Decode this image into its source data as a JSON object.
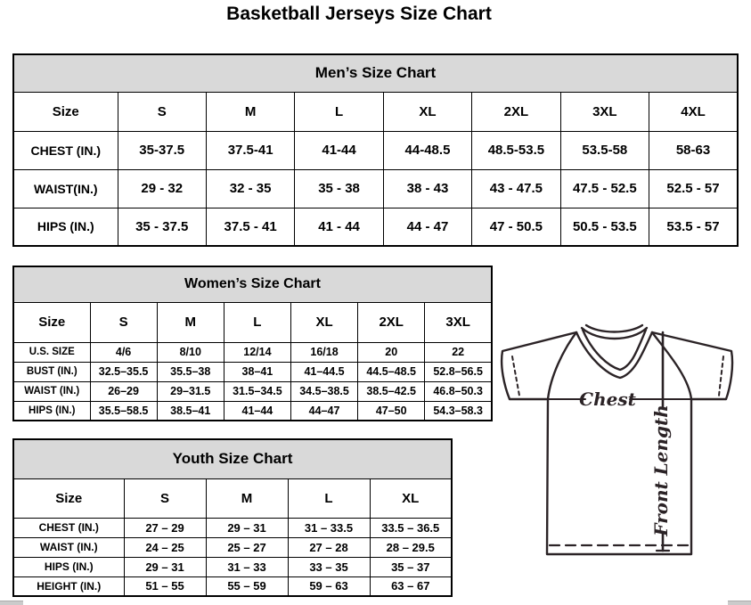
{
  "page": {
    "title": "Basketball Jerseys Size Chart"
  },
  "mens": {
    "caption": "Men’s Size Chart",
    "columns": [
      "Size",
      "S",
      "M",
      "L",
      "XL",
      "2XL",
      "3XL",
      "4XL"
    ],
    "rows": [
      {
        "label": "CHEST (IN.)",
        "values": [
          "35-37.5",
          "37.5-41",
          "41-44",
          "44-48.5",
          "48.5-53.5",
          "53.5-58",
          "58-63"
        ]
      },
      {
        "label": "WAIST(IN.)",
        "values": [
          "29 - 32",
          "32 - 35",
          "35 - 38",
          "38 - 43",
          "43 - 47.5",
          "47.5 - 52.5",
          "52.5 - 57"
        ]
      },
      {
        "label": "HIPS (IN.)",
        "values": [
          "35 - 37.5",
          "37.5 - 41",
          "41 - 44",
          "44 - 47",
          "47 - 50.5",
          "50.5 - 53.5",
          "53.5 - 57"
        ]
      }
    ]
  },
  "womens": {
    "caption": "Women’s Size Chart",
    "columns": [
      "Size",
      "S",
      "M",
      "L",
      "XL",
      "2XL",
      "3XL"
    ],
    "rows": [
      {
        "label": "U.S. SIZE",
        "values": [
          "4/6",
          "8/10",
          "12/14",
          "16/18",
          "20",
          "22"
        ]
      },
      {
        "label": "BUST (IN.)",
        "values": [
          "32.5–35.5",
          "35.5–38",
          "38–41",
          "41–44.5",
          "44.5–48.5",
          "52.8–56.5"
        ]
      },
      {
        "label": "WAIST (IN.)",
        "values": [
          "26–29",
          "29–31.5",
          "31.5–34.5",
          "34.5–38.5",
          "38.5–42.5",
          "46.8–50.3"
        ]
      },
      {
        "label": "HIPS (IN.)",
        "values": [
          "35.5–58.5",
          "38.5–41",
          "41–44",
          "44–47",
          "47–50",
          "54.3–58.3"
        ]
      }
    ]
  },
  "youth": {
    "caption": "Youth Size Chart",
    "columns": [
      "Size",
      "S",
      "M",
      "L",
      "XL"
    ],
    "rows": [
      {
        "label": "CHEST (IN.)",
        "values": [
          "27 – 29",
          "29 – 31",
          "31 – 33.5",
          "33.5 – 36.5"
        ]
      },
      {
        "label": "WAIST (IN.)",
        "values": [
          "24 – 25",
          "25 – 27",
          "27 – 28",
          "28 – 29.5"
        ]
      },
      {
        "label": "HIPS (IN.)",
        "values": [
          "29 – 31",
          "31 – 33",
          "33 – 35",
          "35 – 37"
        ]
      },
      {
        "label": "HEIGHT (IN.)",
        "values": [
          "51 – 55",
          "55 – 59",
          "59 – 63",
          "63 – 67"
        ]
      }
    ]
  },
  "diagram": {
    "chest_label": "Chest",
    "front_length_label": "Front Length"
  },
  "colors": {
    "caption_background": "#d9d9d9",
    "table_border": "#000000",
    "text": "#000000",
    "diagram_stroke": "#2b2326"
  }
}
